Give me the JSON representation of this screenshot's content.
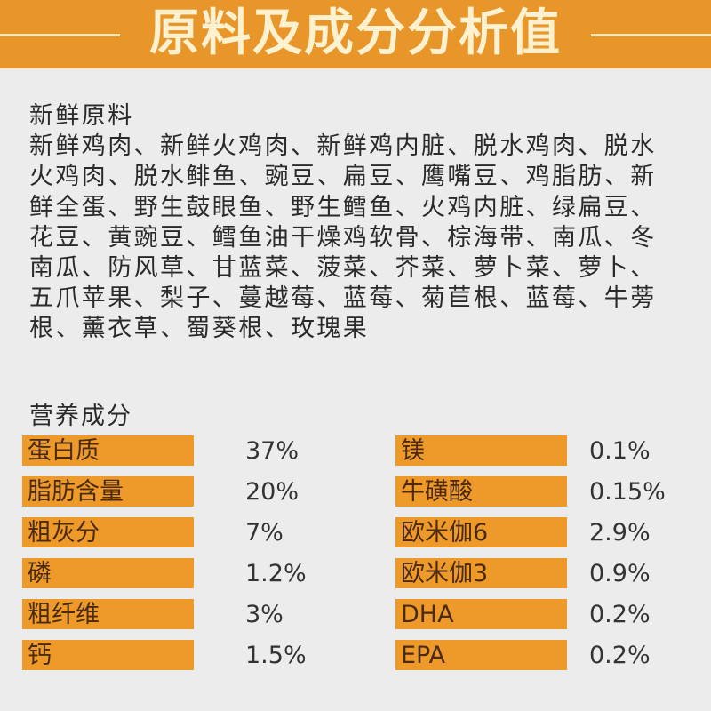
{
  "header": {
    "title": "原料及成分分析值",
    "brand_color": "#e8962a"
  },
  "ingredients": {
    "heading": "新鲜原料",
    "lines": [
      "新鲜鸡肉、新鲜火鸡肉、新鲜鸡内脏、脱水鸡肉、脱水",
      "火鸡肉、脱水鲱鱼、豌豆、扁豆、鹰嘴豆、鸡脂肪、新",
      "鲜全蛋、野生鼓眼鱼、野生鳕鱼、火鸡内脏、绿扁豆、",
      "花豆、黄豌豆、鳕鱼油干燥鸡软骨、棕海带、南瓜、冬",
      "南瓜、防风草、甘蓝菜、菠菜、芥菜、萝卜菜、萝卜、",
      "五爪苹果、梨子、蔓越莓、蓝莓、菊苣根、蓝莓、牛蒡",
      "根、薰衣草、蜀葵根、玫瑰果"
    ]
  },
  "nutrition": {
    "heading": "营养成分",
    "left": [
      {
        "label": "蛋白质",
        "value": "37%"
      },
      {
        "label": "脂肪含量",
        "value": "20%"
      },
      {
        "label": "粗灰分",
        "value": "7%"
      },
      {
        "label": "磷",
        "value": "1.2%"
      },
      {
        "label": "粗纤维",
        "value": "3%"
      },
      {
        "label": "钙",
        "value": "1.5%"
      }
    ],
    "right": [
      {
        "label": "镁",
        "value": "0.1%"
      },
      {
        "label": "牛磺酸",
        "value": "0.15%"
      },
      {
        "label": "欧米伽6",
        "value": "2.9%"
      },
      {
        "label": "欧米伽3",
        "value": "0.9%"
      },
      {
        "label": "DHA",
        "value": "0.2%"
      },
      {
        "label": "EPA",
        "value": "0.2%"
      }
    ]
  }
}
